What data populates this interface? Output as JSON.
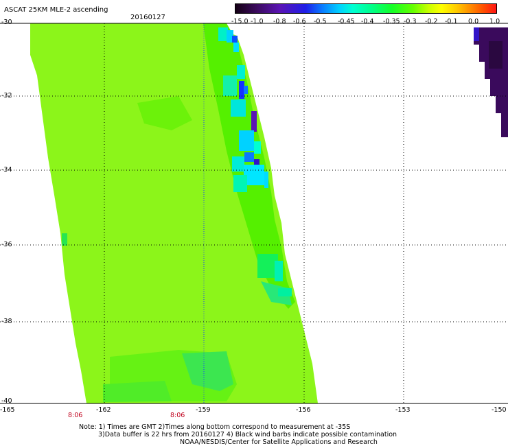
{
  "header": {
    "title": "ASCAT 25KM MLE-2 ascending",
    "date": "20160127"
  },
  "colorbar": {
    "labels": [
      "-15.0",
      "-1.0",
      "-0.8",
      "-0.6",
      "-0.5",
      "-0.45",
      "-0.4",
      "-0.35",
      "-0.3",
      "-0.2",
      "-0.1",
      "0.0",
      "1.0"
    ]
  },
  "map": {
    "lon_labels": [
      "-165",
      "-162",
      "-159",
      "-156",
      "-153",
      "-150"
    ],
    "lat_labels": [
      "-30",
      "-32",
      "-34",
      "-36",
      "-38",
      "-40"
    ],
    "time_labels": [
      "8:06",
      "8:06"
    ]
  },
  "notes": {
    "line1": "Note: 1) Times are GMT 2)Times along bottom correspond to measurement at -35S",
    "line2": "3)Data buffer is 22 hrs from 20160127 4) Black wind barbs indicate possible contamination",
    "line3": "NOAA/NESDIS/Center for Satellite Applications and Research"
  }
}
